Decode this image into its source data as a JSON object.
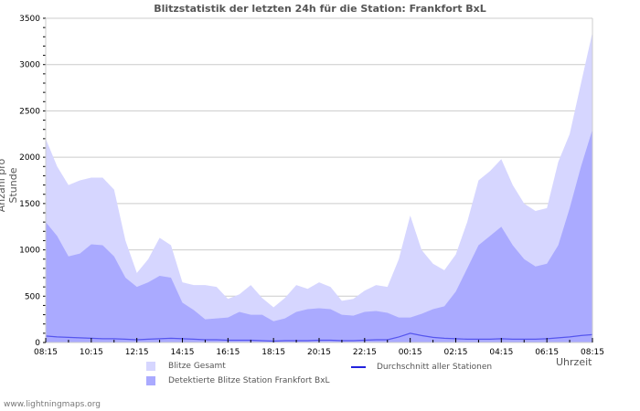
{
  "chart_data": {
    "type": "area",
    "title": "Blitzstatistik der letzten 24h für die Station: Frankfort BxL",
    "xlabel": "Uhrzeit",
    "ylabel": "Anzahl pro Stunde",
    "ylim": [
      0,
      3500
    ],
    "yticks": [
      0,
      500,
      1000,
      1500,
      2000,
      2500,
      3000,
      3500
    ],
    "xtick_labels": [
      "08:15",
      "10:15",
      "12:15",
      "14:15",
      "16:15",
      "18:15",
      "20:15",
      "22:15",
      "00:15",
      "02:15",
      "04:15",
      "06:15",
      "08:15"
    ],
    "grid": true,
    "legend_position": "bottom",
    "x": [
      "08:15",
      "08:45",
      "09:15",
      "09:45",
      "10:15",
      "10:45",
      "11:15",
      "11:45",
      "12:15",
      "12:45",
      "13:15",
      "13:45",
      "14:15",
      "14:45",
      "15:15",
      "15:45",
      "16:15",
      "16:45",
      "17:15",
      "17:45",
      "18:15",
      "18:45",
      "19:15",
      "19:45",
      "20:15",
      "20:45",
      "21:15",
      "21:45",
      "22:15",
      "22:45",
      "23:15",
      "23:45",
      "00:15",
      "00:45",
      "01:15",
      "01:45",
      "02:15",
      "02:45",
      "03:15",
      "03:45",
      "04:15",
      "04:45",
      "05:15",
      "05:45",
      "06:15",
      "06:45",
      "07:15",
      "07:45",
      "08:15"
    ],
    "series": [
      {
        "name": "Blitze Gesamt",
        "color": "#d6d6ff",
        "values": [
          2200,
          1900,
          1700,
          1750,
          1780,
          1780,
          1650,
          1100,
          750,
          900,
          1130,
          1050,
          650,
          620,
          620,
          600,
          470,
          520,
          620,
          480,
          380,
          480,
          620,
          580,
          650,
          600,
          450,
          470,
          560,
          620,
          600,
          900,
          1370,
          1000,
          850,
          780,
          950,
          1300,
          1750,
          1850,
          1980,
          1700,
          1500,
          1420,
          1450,
          1950,
          2250,
          2800,
          3350
        ]
      },
      {
        "name": "Detektierte Blitze Station Frankfort BxL",
        "color": "#aaaaff",
        "values": [
          1300,
          1150,
          930,
          960,
          1060,
          1050,
          930,
          700,
          600,
          650,
          720,
          700,
          430,
          350,
          250,
          260,
          270,
          330,
          300,
          300,
          230,
          260,
          330,
          360,
          370,
          360,
          300,
          290,
          330,
          340,
          320,
          270,
          270,
          310,
          360,
          390,
          550,
          800,
          1050,
          1150,
          1250,
          1050,
          900,
          820,
          850,
          1050,
          1450,
          1900,
          2300
        ]
      },
      {
        "name": "Durchschnitt aller Stationen",
        "color": "#2222dd",
        "values": [
          70,
          60,
          55,
          50,
          45,
          40,
          40,
          35,
          30,
          35,
          40,
          45,
          40,
          35,
          30,
          30,
          25,
          25,
          25,
          20,
          15,
          20,
          20,
          20,
          25,
          25,
          20,
          20,
          25,
          30,
          30,
          60,
          100,
          75,
          55,
          45,
          40,
          35,
          35,
          35,
          40,
          35,
          35,
          35,
          40,
          50,
          60,
          75,
          85
        ]
      }
    ]
  },
  "legend": {
    "gesamt": "Blitze Gesamt",
    "detektiert": "Detektierte Blitze Station Frankfort BxL",
    "durchschnitt": "Durchschnitt aller Stationen"
  },
  "footer": "www.lightningmaps.org"
}
